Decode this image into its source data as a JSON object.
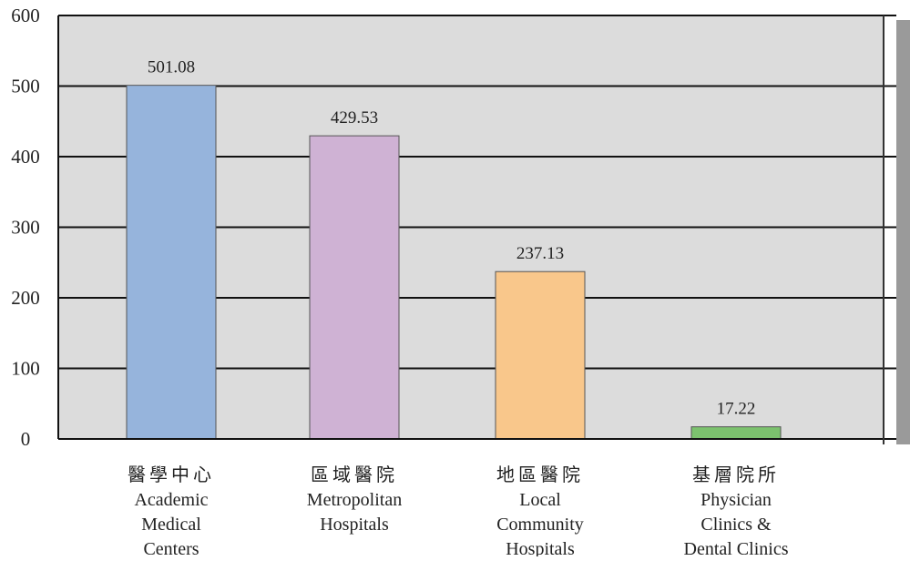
{
  "chart_data": {
    "type": "bar",
    "categories": [
      [
        "醫學中心",
        "Academic",
        "Medical",
        "Centers"
      ],
      [
        "區域醫院",
        "Metropolitan",
        "Hospitals"
      ],
      [
        "地區醫院",
        "Local",
        "Community",
        "Hospitals"
      ],
      [
        "基層院所",
        "Physician",
        "Clinics &",
        "Dental Clinics"
      ]
    ],
    "values": [
      501.08,
      429.53,
      237.13,
      17.22
    ],
    "value_labels": [
      "501.08",
      "429.53",
      "237.13",
      "17.22"
    ],
    "yticks": [
      0,
      100,
      200,
      300,
      400,
      500,
      600
    ],
    "ytick_labels": [
      "0",
      "100",
      "200",
      "300",
      "400",
      "500",
      "600"
    ],
    "ylim": [
      0,
      600
    ],
    "title": "",
    "xlabel": "",
    "ylabel": "",
    "grid": true,
    "legend": "none",
    "colors": {
      "bars": [
        "#96b4dc",
        "#cfb2d4",
        "#f9c78b",
        "#7cc26e"
      ],
      "plot_background": "#dcdcdc",
      "gridline": "#111111",
      "bar_outline": "#555555",
      "right_band": "#9a9a9a"
    }
  }
}
